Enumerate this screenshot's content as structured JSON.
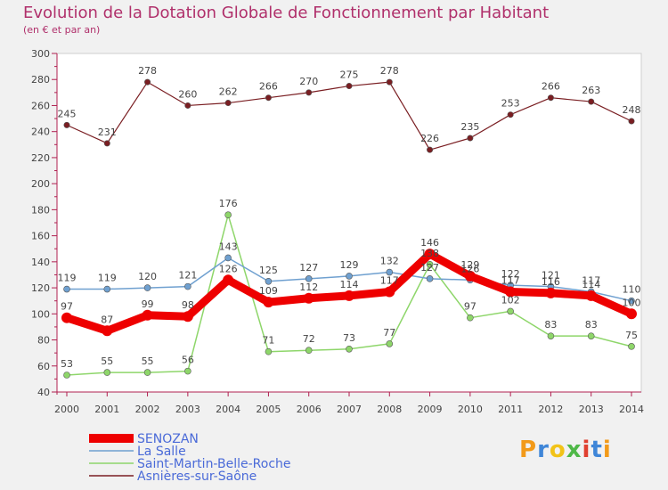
{
  "header": {
    "title": "Evolution de la Dotation Globale de Fonctionnement par Habitant",
    "subtitle": "(en € et par an)"
  },
  "logo": {
    "text": "Proxiti"
  },
  "chart_data": {
    "type": "line",
    "title": "Evolution de la Dotation Globale de Fonctionnement par Habitant",
    "subtitle": "(en € et par an)",
    "xlabel": "",
    "ylabel": "",
    "x": [
      2000,
      2001,
      2002,
      2003,
      2004,
      2005,
      2006,
      2007,
      2008,
      2009,
      2010,
      2011,
      2012,
      2013,
      2014
    ],
    "ylim": [
      40,
      300
    ],
    "yticks": [
      40,
      60,
      80,
      100,
      120,
      140,
      160,
      180,
      200,
      220,
      240,
      260,
      280,
      300
    ],
    "grid": false,
    "legend_position": "bottom-left",
    "series": [
      {
        "name": "SENOZAN",
        "color": "#ee0000",
        "values": [
          97,
          87,
          99,
          98,
          126,
          109,
          112,
          114,
          117,
          146,
          129,
          117,
          116,
          114,
          100
        ]
      },
      {
        "name": "La Salle",
        "color": "#6fa0d0",
        "values": [
          119,
          119,
          120,
          121,
          143,
          125,
          127,
          129,
          132,
          127,
          126,
          122,
          121,
          117,
          110
        ]
      },
      {
        "name": "Saint-Martin-Belle-Roche",
        "color": "#8ed66a",
        "values": [
          53,
          55,
          55,
          56,
          176,
          71,
          72,
          73,
          77,
          138,
          97,
          102,
          83,
          83,
          75
        ]
      },
      {
        "name": "Asnières-sur-Saône",
        "color": "#7a1e22",
        "values": [
          245,
          231,
          278,
          260,
          262,
          266,
          270,
          275,
          278,
          226,
          235,
          253,
          266,
          263,
          248
        ]
      }
    ]
  }
}
